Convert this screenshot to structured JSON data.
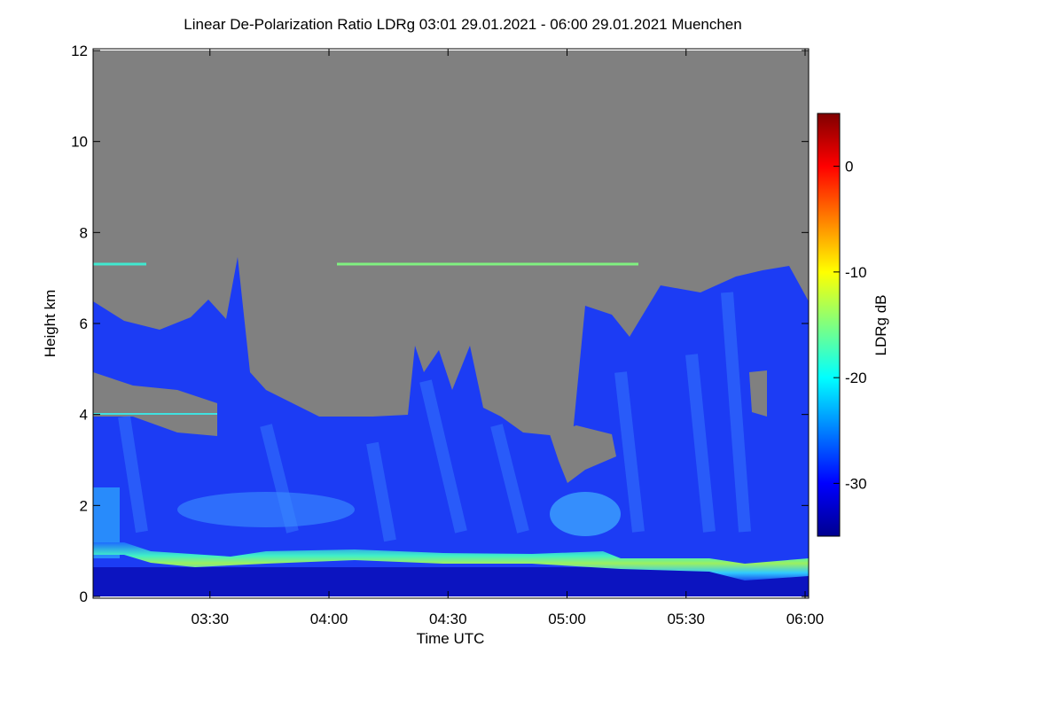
{
  "chart_data": {
    "type": "heatmap",
    "title": "Linear De-Polarization Ratio LDRg   03:01 29.01.2021 - 06:00 29.01.2021 Muenchen",
    "x_label": "Time UTC",
    "y_label": "Height km",
    "colorbar_label": "LDRg dB",
    "xlim": [
      "03:01",
      "06:00"
    ],
    "xticks": [
      "03:30",
      "04:00",
      "04:30",
      "05:00",
      "05:30",
      "06:00"
    ],
    "ylim": [
      0,
      12
    ],
    "yticks": [
      0,
      2,
      4,
      6,
      8,
      10,
      12
    ],
    "clim": [
      -35,
      5
    ],
    "cticks": [
      -30,
      -20,
      -10,
      0
    ],
    "colormap": "jet",
    "missing_color": "#808080"
  }
}
